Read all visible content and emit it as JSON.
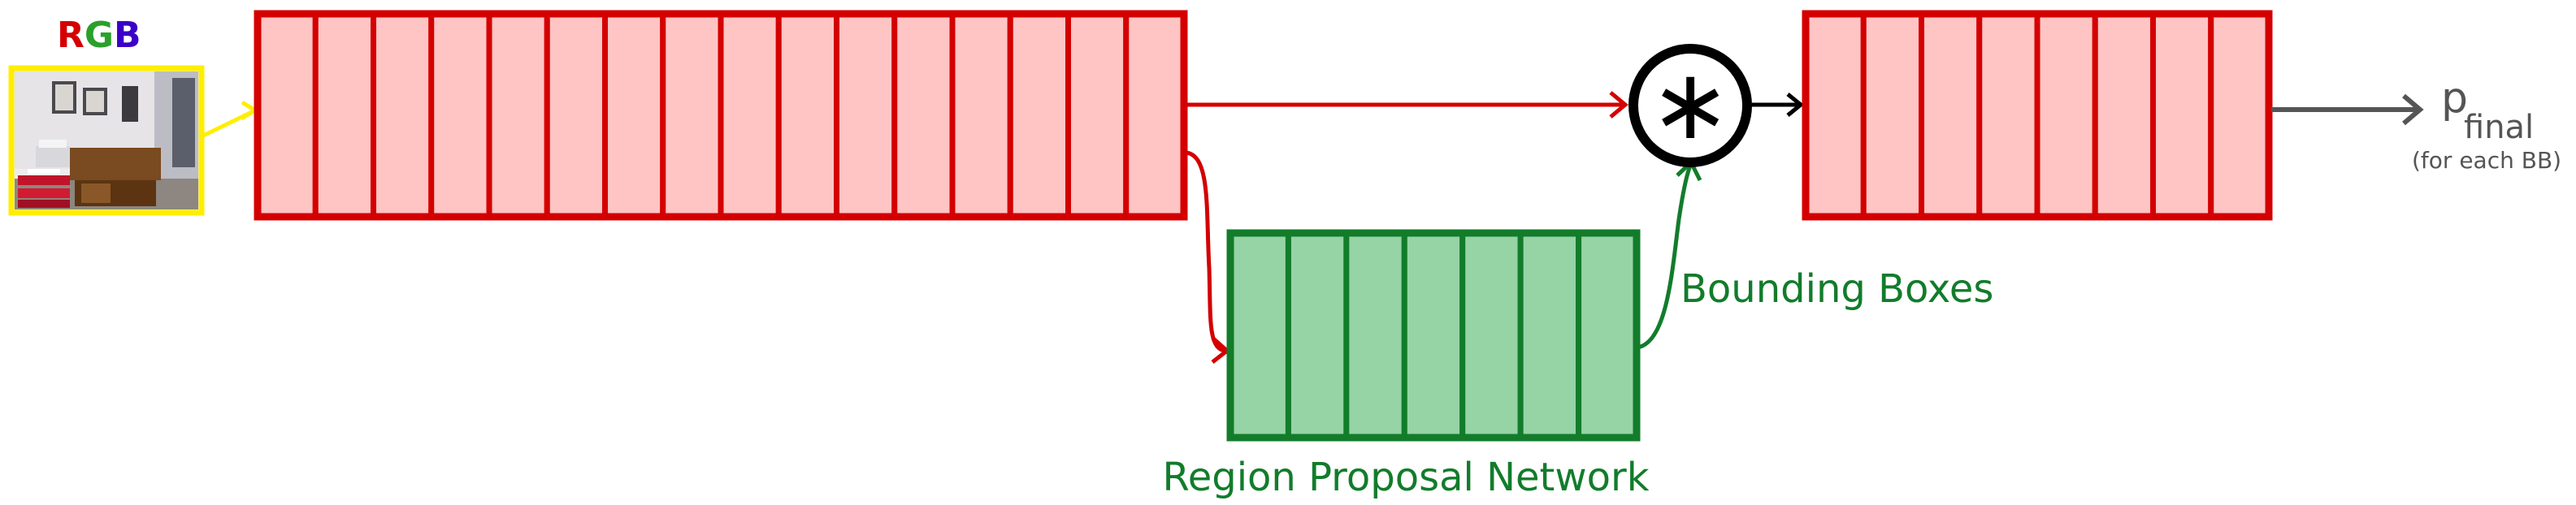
{
  "input": {
    "label_letters": [
      {
        "char": "R",
        "color": "#d40000"
      },
      {
        "char": "G",
        "color": "#2aa02a"
      },
      {
        "char": "B",
        "color": "#3d00c8"
      }
    ],
    "frame_color": "#ffee00",
    "arrow_color": "#ffee00"
  },
  "backbone": {
    "cell_count": 16,
    "fill_color": "#ffc4c4",
    "stroke_color": "#d40000"
  },
  "rpn": {
    "label": "Region Proposal Network",
    "cell_count": 7,
    "fill_color": "#96d3a5",
    "stroke_color": "#127c2b"
  },
  "bbox_link": {
    "label": "Bounding Boxes",
    "color": "#127c2b"
  },
  "combine": {
    "symbol": "∗",
    "stroke_color": "#000000"
  },
  "head": {
    "cell_count": 8,
    "fill_color": "#ffc4c4",
    "stroke_color": "#d40000"
  },
  "output": {
    "symbol": "p",
    "subscript": "final",
    "note": "(for each BB)",
    "color": "#555555"
  },
  "connection_color": "#d40000"
}
